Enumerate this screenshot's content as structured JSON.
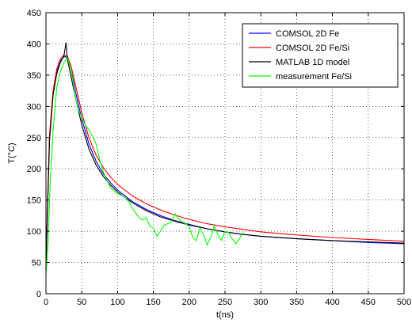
{
  "chart_data": {
    "type": "line",
    "xlabel": "t(ns)",
    "ylabel": "T(°C)",
    "xlim": [
      0,
      500
    ],
    "ylim": [
      0,
      450
    ],
    "xticks": [
      0,
      50,
      100,
      150,
      200,
      250,
      300,
      350,
      400,
      450,
      500
    ],
    "yticks": [
      0,
      50,
      100,
      150,
      200,
      250,
      300,
      350,
      400,
      450
    ],
    "grid": "on",
    "legend_position": "top-right",
    "series": [
      {
        "name": "COMSOL 2D Fe",
        "color": "#0000ff",
        "x": [
          0,
          2,
          5,
          10,
          15,
          20,
          25,
          30,
          35,
          40,
          50,
          60,
          70,
          80,
          90,
          100,
          120,
          140,
          160,
          180,
          200,
          225,
          250,
          275,
          300,
          350,
          400,
          450,
          500
        ],
        "y": [
          40,
          130,
          250,
          320,
          355,
          372,
          380,
          378,
          360,
          330,
          280,
          240,
          212,
          192,
          178,
          166,
          148,
          135,
          125,
          117,
          111,
          104,
          99,
          95,
          92,
          88,
          85,
          82,
          80
        ]
      },
      {
        "name": "COMSOL 2D Fe/Si",
        "color": "#ff0000",
        "x": [
          0,
          2,
          5,
          10,
          15,
          20,
          25,
          30,
          35,
          40,
          50,
          60,
          70,
          80,
          90,
          100,
          120,
          140,
          160,
          180,
          200,
          225,
          250,
          275,
          300,
          350,
          400,
          450,
          500
        ],
        "y": [
          40,
          135,
          255,
          325,
          360,
          376,
          382,
          380,
          365,
          340,
          290,
          250,
          222,
          202,
          187,
          175,
          157,
          144,
          134,
          126,
          119,
          112,
          107,
          103,
          99,
          94,
          90,
          87,
          84
        ]
      },
      {
        "name": "MATLAB 1D model",
        "color": "#000000",
        "x": [
          0,
          2,
          5,
          10,
          15,
          20,
          25,
          28,
          30,
          35,
          40,
          50,
          60,
          70,
          80,
          90,
          100,
          120,
          140,
          160,
          180,
          200,
          225,
          250,
          275,
          300,
          350,
          400,
          450,
          500
        ],
        "y": [
          40,
          125,
          245,
          318,
          352,
          370,
          380,
          402,
          375,
          348,
          320,
          270,
          232,
          206,
          188,
          174,
          163,
          146,
          133,
          123,
          116,
          110,
          104,
          99,
          95,
          92,
          88,
          85,
          83,
          81
        ]
      },
      {
        "name": "measurement Fe/Si",
        "color": "#00ff00",
        "x": [
          0,
          3,
          6,
          10,
          15,
          20,
          25,
          30,
          35,
          40,
          45,
          50,
          55,
          60,
          65,
          70,
          75,
          80,
          85,
          90,
          95,
          100,
          105,
          110,
          115,
          120,
          125,
          130,
          135,
          140,
          145,
          150,
          155,
          160,
          165,
          170,
          175,
          180,
          185,
          190,
          195,
          200,
          205,
          210,
          215,
          220,
          225,
          230,
          235,
          240,
          245,
          250,
          255,
          260,
          265,
          270,
          275
        ],
        "y": [
          30,
          80,
          180,
          260,
          330,
          355,
          370,
          378,
          360,
          320,
          295,
          282,
          270,
          262,
          252,
          240,
          215,
          195,
          182,
          170,
          165,
          160,
          158,
          155,
          148,
          138,
          130,
          122,
          118,
          122,
          108,
          105,
          92,
          100,
          110,
          112,
          115,
          128,
          120,
          115,
          112,
          108,
          90,
          85,
          105,
          95,
          78,
          90,
          108,
          95,
          85,
          100,
          98,
          88,
          80,
          88,
          98
        ]
      }
    ]
  }
}
